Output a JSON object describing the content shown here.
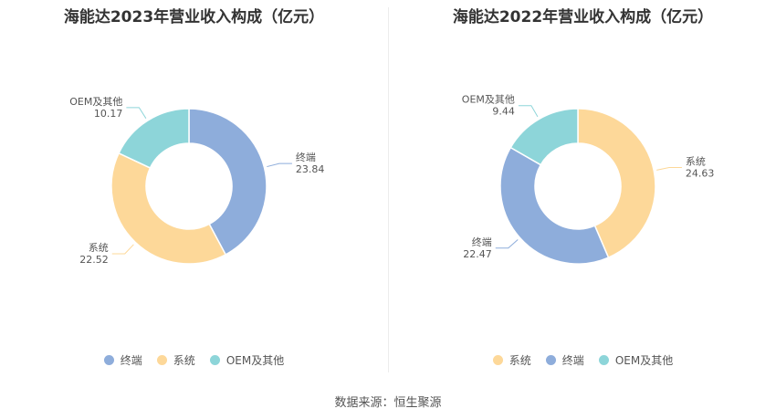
{
  "source": "数据来源：恒生聚源",
  "colors": {
    "终端": "#8eaddb",
    "系统": "#fdd899",
    "OEM及其他": "#8dd5d9"
  },
  "chart_data": [
    {
      "type": "pie",
      "title": "海能达2023年营业收入构成（亿元）",
      "slices": [
        {
          "name": "终端",
          "value": 23.84
        },
        {
          "name": "系统",
          "value": 22.52
        },
        {
          "name": "OEM及其他",
          "value": 10.17
        }
      ],
      "legend": [
        "终端",
        "系统",
        "OEM及其他"
      ],
      "legend_position": "bottom"
    },
    {
      "type": "pie",
      "title": "海能达2022年营业收入构成（亿元）",
      "slices": [
        {
          "name": "系统",
          "value": 24.63
        },
        {
          "name": "终端",
          "value": 22.47
        },
        {
          "name": "OEM及其他",
          "value": 9.44
        }
      ],
      "legend": [
        "系统",
        "终端",
        "OEM及其他"
      ],
      "legend_position": "bottom"
    }
  ]
}
